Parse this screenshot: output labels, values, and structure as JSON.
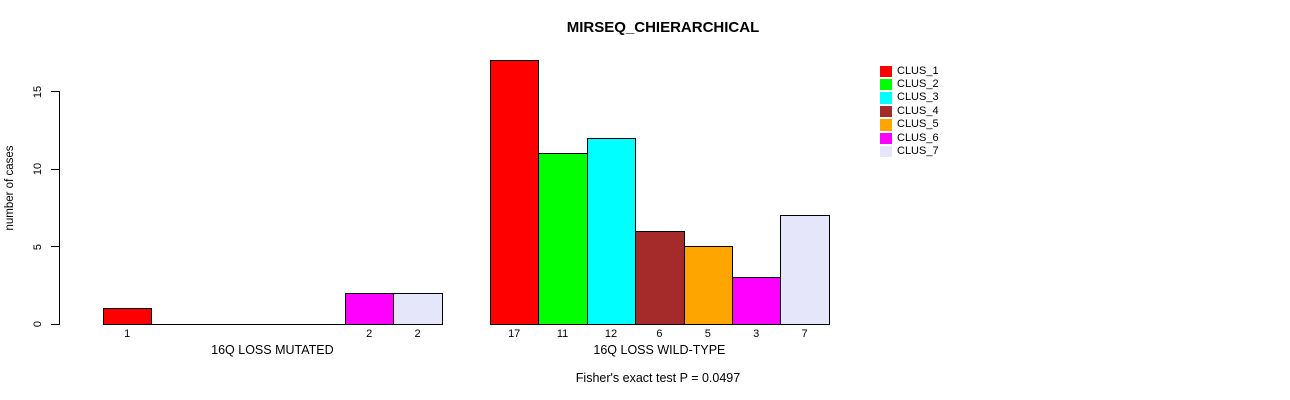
{
  "title": "MIRSEQ_CHIERARCHICAL",
  "y_axis": {
    "label": "number of cases",
    "ticks": [
      0,
      5,
      10,
      15
    ]
  },
  "footnote": "Fisher's exact test P = 0.0497",
  "chart_data": {
    "type": "bar",
    "title": "MIRSEQ_CHIERARCHICAL",
    "xlabel": "",
    "ylabel": "number of cases",
    "ylim": [
      0,
      17
    ],
    "yticks": [
      0,
      5,
      10,
      15
    ],
    "grid": false,
    "legend_position": "top-right",
    "categories": [
      "16Q LOSS MUTATED",
      "16Q LOSS WILD-TYPE"
    ],
    "series": [
      {
        "name": "CLUS_1",
        "color": "#FF0000",
        "values": [
          1,
          17
        ]
      },
      {
        "name": "CLUS_2",
        "color": "#00FF00",
        "values": [
          0,
          11
        ]
      },
      {
        "name": "CLUS_3",
        "color": "#00FFFF",
        "values": [
          0,
          12
        ]
      },
      {
        "name": "CLUS_4",
        "color": "#A52A2A",
        "values": [
          0,
          6
        ]
      },
      {
        "name": "CLUS_5",
        "color": "#FFA500",
        "values": [
          0,
          5
        ]
      },
      {
        "name": "CLUS_6",
        "color": "#FF00FF",
        "values": [
          2,
          3
        ]
      },
      {
        "name": "CLUS_7",
        "color": "#E6E6FA",
        "values": [
          2,
          7
        ]
      }
    ],
    "bar_value_labels_shown_for_nonzero": true,
    "annotation": "Fisher's exact test P = 0.0497",
    "bar_outline_color": "#000000",
    "background_color": "#FFFFFF"
  }
}
